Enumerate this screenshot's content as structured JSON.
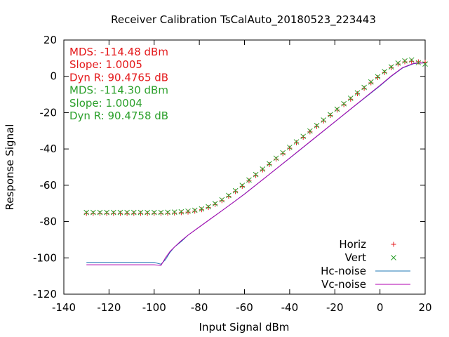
{
  "chart_data": {
    "type": "scatter",
    "title": "Receiver Calibration TsCalAuto_20180523_223443",
    "xlabel": "Input Signal dBm",
    "ylabel": "Response Signal",
    "xlim": [
      -140,
      20
    ],
    "ylim": [
      -120,
      20
    ],
    "xticks": [
      "-140",
      "-120",
      "-100",
      "-80",
      "-60",
      "-40",
      "-20",
      "0",
      "20"
    ],
    "yticks": [
      "-120",
      "-100",
      "-80",
      "-60",
      "-40",
      "-20",
      "0",
      "20"
    ],
    "grid": false,
    "legend_position": "bottom-right",
    "annotations": [
      {
        "text": "MDS: -114.48 dBm",
        "color": "#e41a1c"
      },
      {
        "text": "Slope: 1.0005",
        "color": "#e41a1c"
      },
      {
        "text": "Dyn R: 90.4765 dB",
        "color": "#e41a1c"
      },
      {
        "text": "MDS: -114.30 dBm",
        "color": "#2ca02c"
      },
      {
        "text": "Slope: 1.0004",
        "color": "#2ca02c"
      },
      {
        "text": "Dyn R: 90.4758 dB",
        "color": "#2ca02c"
      }
    ],
    "series": [
      {
        "name": "Horiz",
        "kind": "points",
        "marker": "plus",
        "color": "#e41a1c",
        "x": [
          -130,
          -127,
          -124,
          -121,
          -118,
          -115,
          -112,
          -109,
          -106,
          -103,
          -100,
          -97,
          -94,
          -91,
          -88,
          -85,
          -82,
          -79,
          -76,
          -73,
          -70,
          -67,
          -64,
          -61,
          -58,
          -55,
          -52,
          -49,
          -46,
          -43,
          -40,
          -37,
          -34,
          -31,
          -28,
          -25,
          -22,
          -19,
          -16,
          -13,
          -10,
          -7,
          -4,
          -1,
          2,
          5,
          8,
          11,
          14,
          17,
          20
        ],
        "y": [
          -75.5,
          -75.5,
          -75.5,
          -75.5,
          -75.5,
          -75.5,
          -75.5,
          -75.5,
          -75.5,
          -75.5,
          -75.5,
          -75.5,
          -75.4,
          -75.3,
          -75.1,
          -74.8,
          -74.3,
          -73.5,
          -72.3,
          -70.6,
          -68.5,
          -66.1,
          -63.5,
          -60.6,
          -57.6,
          -54.6,
          -51.6,
          -48.6,
          -45.6,
          -42.6,
          -39.6,
          -36.6,
          -33.6,
          -30.6,
          -27.6,
          -24.6,
          -21.6,
          -18.6,
          -15.6,
          -12.6,
          -9.6,
          -6.6,
          -3.6,
          -0.7,
          2.1,
          4.7,
          6.8,
          8.0,
          8.3,
          8.0,
          7.8
        ]
      },
      {
        "name": "Vert",
        "kind": "points",
        "marker": "cross",
        "color": "#2ca02c",
        "x": [
          -130,
          -127,
          -124,
          -121,
          -118,
          -115,
          -112,
          -109,
          -106,
          -103,
          -100,
          -97,
          -94,
          -91,
          -88,
          -85,
          -82,
          -79,
          -76,
          -73,
          -70,
          -67,
          -64,
          -61,
          -58,
          -55,
          -52,
          -49,
          -46,
          -43,
          -40,
          -37,
          -34,
          -31,
          -28,
          -25,
          -22,
          -19,
          -16,
          -13,
          -10,
          -7,
          -4,
          -1,
          2,
          5,
          8,
          11,
          14,
          17,
          20
        ],
        "y": [
          -75.0,
          -75.0,
          -75.0,
          -75.0,
          -75.0,
          -75.0,
          -75.0,
          -75.0,
          -75.0,
          -75.0,
          -75.0,
          -75.0,
          -74.9,
          -74.8,
          -74.6,
          -74.3,
          -73.8,
          -73.0,
          -71.8,
          -70.1,
          -68.0,
          -65.6,
          -63.0,
          -60.1,
          -57.1,
          -54.1,
          -51.1,
          -48.1,
          -45.1,
          -42.1,
          -39.1,
          -36.1,
          -33.1,
          -30.1,
          -27.1,
          -24.1,
          -21.1,
          -18.1,
          -15.1,
          -12.1,
          -9.1,
          -6.1,
          -3.1,
          -0.2,
          2.6,
          5.2,
          7.3,
          8.5,
          9.0,
          7.5,
          6.8
        ]
      },
      {
        "name": "Hc-noise",
        "kind": "line",
        "color": "#1f77b4",
        "x": [
          -130,
          -120,
          -110,
          -100,
          -97,
          -95,
          -93,
          -91,
          -88,
          -85,
          -80,
          -75,
          -70,
          -65,
          -60,
          -50,
          -40,
          -30,
          -20,
          -10,
          0,
          5,
          10,
          15,
          20
        ],
        "y": [
          -102.5,
          -102.5,
          -102.5,
          -102.5,
          -103.5,
          -101,
          -97,
          -94,
          -91,
          -87.5,
          -83,
          -78.5,
          -74,
          -69.5,
          -64.8,
          -55,
          -45.1,
          -35.1,
          -25.1,
          -15.1,
          -5.3,
          0,
          4.6,
          7,
          7.5
        ]
      },
      {
        "name": "Vc-noise",
        "kind": "line",
        "color": "#b000b0",
        "x": [
          -130,
          -120,
          -110,
          -100,
          -97,
          -95,
          -93,
          -91,
          -88,
          -85,
          -80,
          -75,
          -70,
          -65,
          -60,
          -50,
          -40,
          -30,
          -20,
          -10,
          0,
          5,
          10,
          15,
          20
        ],
        "y": [
          -103.8,
          -103.8,
          -103.8,
          -103.8,
          -104.2,
          -100,
          -96.5,
          -94,
          -90.5,
          -87.5,
          -83,
          -78.5,
          -74,
          -69.5,
          -64.9,
          -55,
          -45,
          -35,
          -25,
          -15,
          -5,
          0.2,
          4.8,
          7.2,
          7.4
        ]
      }
    ]
  }
}
